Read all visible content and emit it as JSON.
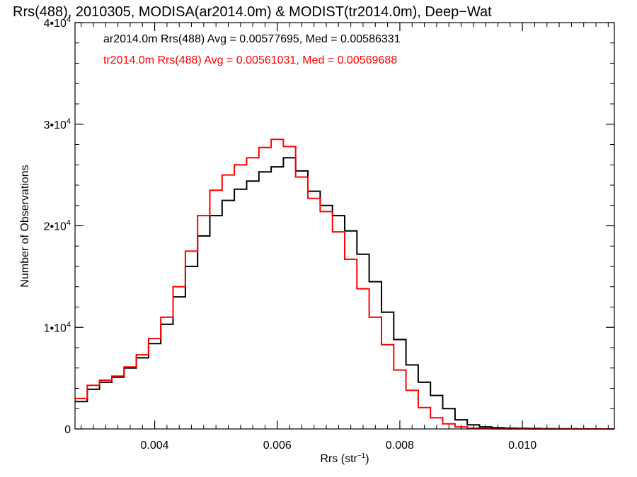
{
  "chart_data": {
    "type": "line",
    "title": "Rrs(488), 2010305, MODISA(ar2014.0m) & MODIST(tr2014.0m), Deep−Wat",
    "xlabel": "Rrs (str",
    "xlabel_sup": "−1",
    "xlabel_close": ")",
    "ylabel": "Number of Observations",
    "xlim": [
      0.0027,
      0.0115
    ],
    "ylim": [
      0,
      40000
    ],
    "xticks": [
      {
        "value": 0.004,
        "label": "0.004"
      },
      {
        "value": 0.006,
        "label": "0.006"
      },
      {
        "value": 0.008,
        "label": "0.008"
      },
      {
        "value": 0.01,
        "label": "0.010"
      }
    ],
    "yticks": [
      {
        "value": 0,
        "label": "0",
        "sup": ""
      },
      {
        "value": 10000,
        "label": "1•10",
        "sup": "4"
      },
      {
        "value": 20000,
        "label": "2•10",
        "sup": "4"
      },
      {
        "value": 30000,
        "label": "3•10",
        "sup": "4"
      },
      {
        "value": 40000,
        "label": "4•10",
        "sup": "4"
      }
    ],
    "annotations": [
      {
        "text": "ar2014.0m Rrs(488) Avg = 0.00577695, Med = 0.00586331",
        "color": "#000000"
      },
      {
        "text": "tr2014.0m Rrs(488) Avg = 0.00561031, Med = 0.00569688",
        "color": "#ff0000"
      }
    ],
    "series": [
      {
        "color": "#000000",
        "x": [
          0.0027,
          0.0029,
          0.0031,
          0.0033,
          0.0035,
          0.0037,
          0.0039,
          0.0041,
          0.0043,
          0.0045,
          0.0047,
          0.0049,
          0.0051,
          0.0053,
          0.0055,
          0.0057,
          0.0059,
          0.0061,
          0.0063,
          0.0065,
          0.0067,
          0.0069,
          0.0071,
          0.0073,
          0.0075,
          0.0077,
          0.0079,
          0.0081,
          0.0083,
          0.0085,
          0.0087,
          0.0089,
          0.0091,
          0.0093,
          0.0095,
          0.0097,
          0.0099,
          0.0101,
          0.0103,
          0.0105,
          0.0107,
          0.0109,
          0.0111,
          0.0113,
          0.0115
        ],
        "y": [
          2700,
          3900,
          4600,
          5100,
          6000,
          7000,
          8400,
          10300,
          13000,
          16000,
          19000,
          21000,
          22500,
          23600,
          24400,
          25300,
          25800,
          26700,
          25400,
          23400,
          22000,
          21000,
          19500,
          17200,
          14500,
          11500,
          8800,
          6300,
          4600,
          3300,
          2000,
          900,
          400,
          200,
          120,
          80,
          60,
          40,
          30,
          20,
          15,
          10,
          5,
          0,
          0
        ]
      },
      {
        "color": "#ff0000",
        "x": [
          0.0027,
          0.0029,
          0.0031,
          0.0033,
          0.0035,
          0.0037,
          0.0039,
          0.0041,
          0.0043,
          0.0045,
          0.0047,
          0.0049,
          0.0051,
          0.0053,
          0.0055,
          0.0057,
          0.0059,
          0.0061,
          0.0063,
          0.0065,
          0.0067,
          0.0069,
          0.0071,
          0.0073,
          0.0075,
          0.0077,
          0.0079,
          0.0081,
          0.0083,
          0.0085,
          0.0087,
          0.0089,
          0.0091,
          0.0093,
          0.0095,
          0.0097,
          0.0099,
          0.0101,
          0.0103,
          0.0105,
          0.0107,
          0.0109,
          0.0111,
          0.0113,
          0.0115
        ],
        "y": [
          3000,
          4300,
          4800,
          5200,
          6100,
          7300,
          8900,
          11000,
          14000,
          17500,
          21000,
          23500,
          25000,
          26000,
          26700,
          27700,
          28500,
          27800,
          24800,
          22700,
          21400,
          19400,
          16700,
          13800,
          11000,
          8300,
          5800,
          3800,
          2100,
          1100,
          500,
          200,
          80,
          40,
          20,
          10,
          5,
          0,
          0,
          0,
          0,
          0,
          0,
          0,
          0
        ]
      }
    ]
  }
}
